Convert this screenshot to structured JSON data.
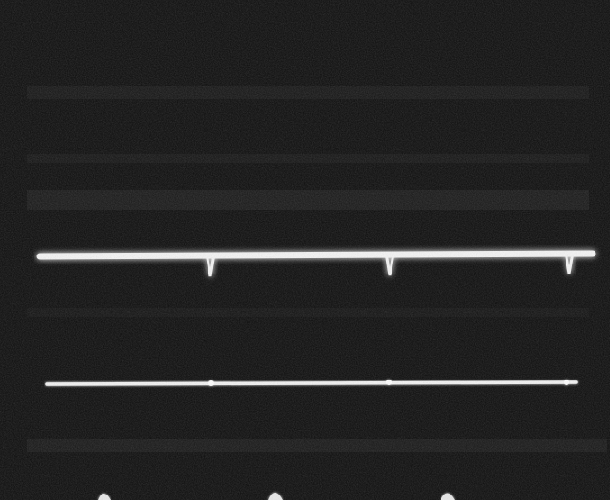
{
  "photo": {
    "subject": "oscilloscope-screen",
    "traces": [
      {
        "id": "upper-trace",
        "pulse_count": 3,
        "pulse_direction": "down"
      },
      {
        "id": "lower-trace",
        "pulse_count": 3,
        "pulse_direction": "none"
      }
    ],
    "bottom_markers": 3
  },
  "colors": {
    "background": "#0b0b0b",
    "trace": "#f4f4f4",
    "glow": "#ffffff",
    "screen_band": "#1d1d1d"
  }
}
